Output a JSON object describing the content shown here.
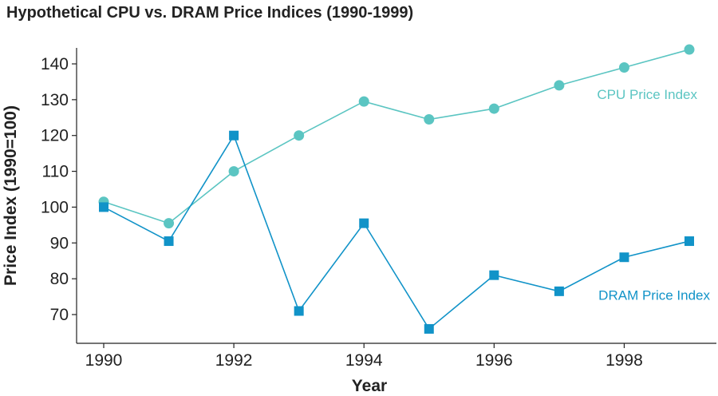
{
  "chart_data": {
    "type": "line",
    "title": "Hypothetical CPU vs. DRAM Price Indices (1990-1999)",
    "xlabel": "Year",
    "ylabel": "Price Index (1990=100)",
    "x": [
      1990,
      1991,
      1992,
      1993,
      1994,
      1995,
      1996,
      1997,
      1998,
      1999
    ],
    "xlim": [
      1989.8,
      1999.2
    ],
    "ylim": [
      62,
      145
    ],
    "x_ticks": [
      1990,
      1992,
      1994,
      1996,
      1998
    ],
    "y_ticks": [
      70,
      80,
      90,
      100,
      110,
      120,
      130,
      140
    ],
    "grid": false,
    "legend": "inline labels at right end of each series",
    "series": [
      {
        "name": "CPU Price Index",
        "marker": "circle",
        "color": "#5bc5c2",
        "values": [
          101.5,
          95.5,
          110,
          120,
          129.5,
          124.5,
          127.5,
          134,
          139,
          144
        ]
      },
      {
        "name": "DRAM Price Index",
        "marker": "square",
        "color": "#1193c8",
        "values": [
          100,
          90.5,
          120,
          71,
          95.5,
          66,
          81,
          76.5,
          86,
          90.5
        ]
      }
    ]
  }
}
